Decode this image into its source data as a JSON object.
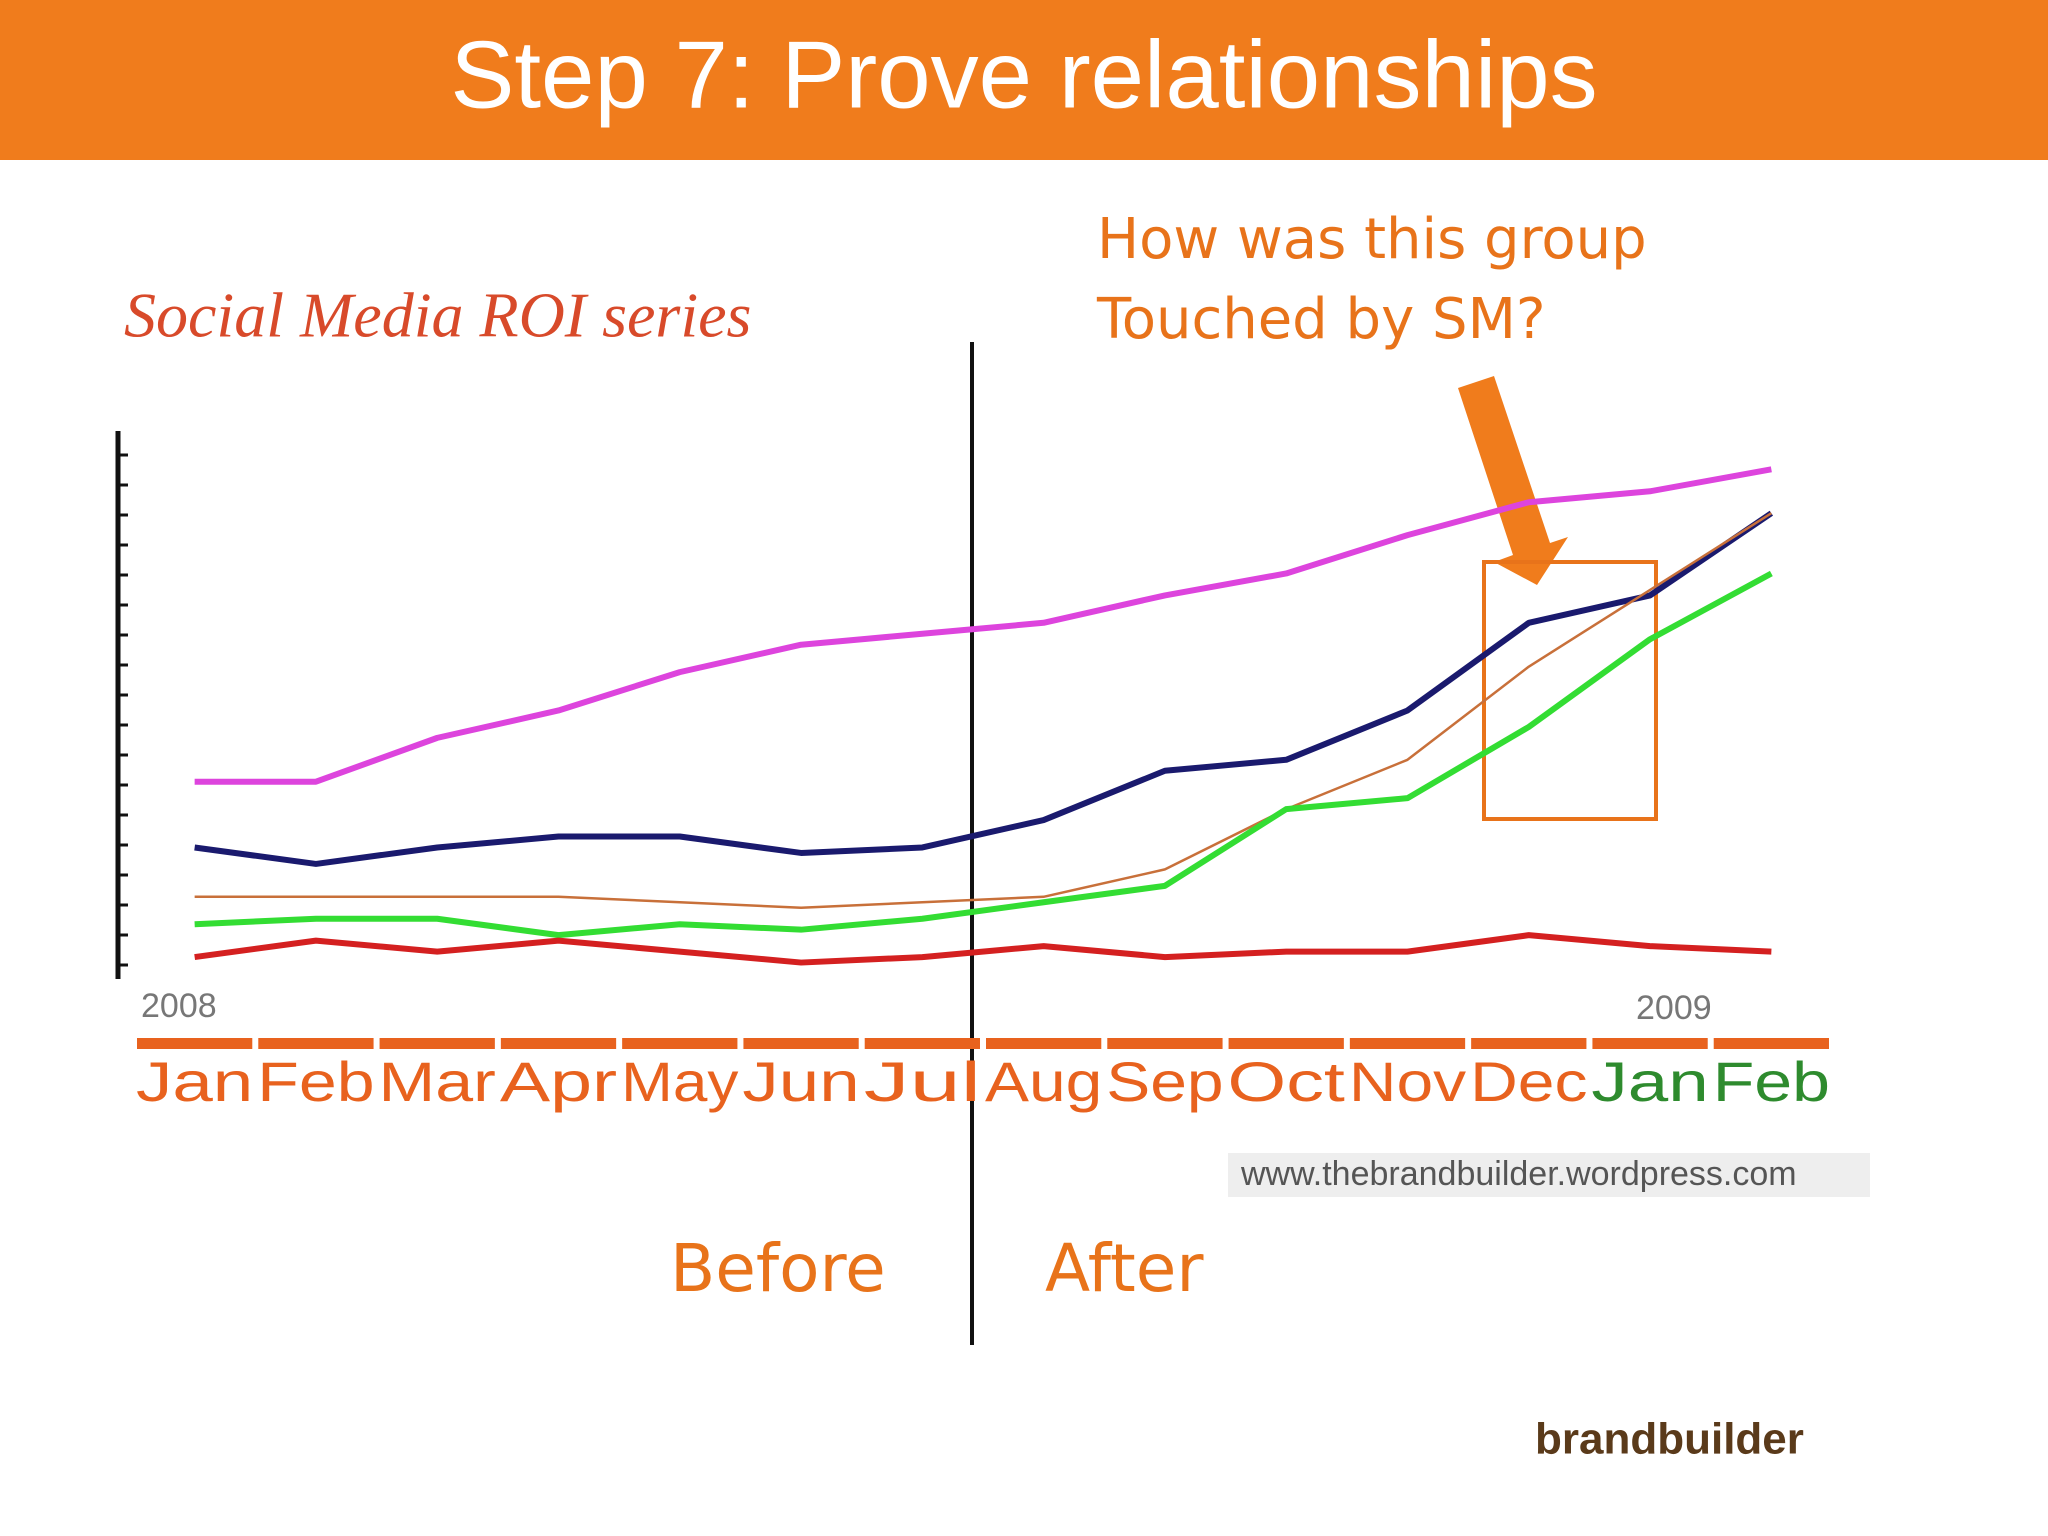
{
  "slide_title": "Step 7: Prove relationships",
  "callout": [
    "How was this group",
    "Touched by SM?"
  ],
  "before_label": "Before",
  "after_label": "After",
  "logo": "brandbuilder",
  "chart_data": {
    "type": "line",
    "title": "Social Media ROI series",
    "categories": [
      "Jan",
      "Feb",
      "Mar",
      "Apr",
      "May",
      "Jun",
      "Jul",
      "Aug",
      "Sep",
      "Oct",
      "Nov",
      "Dec",
      "Jan",
      "Feb"
    ],
    "category_colors": [
      "#e8621e",
      "#e8621e",
      "#e8621e",
      "#e8621e",
      "#e8621e",
      "#e8621e",
      "#e8621e",
      "#e8621e",
      "#e8621e",
      "#e8621e",
      "#e8621e",
      "#e8621e",
      "#2e8b2e",
      "#2e8b2e"
    ],
    "year_labels": [
      "2008",
      "2009"
    ],
    "source": "www.thebrandbuilder.wordpress.com",
    "ylim": [
      0,
      100
    ],
    "series": [
      {
        "color": "#dd44dd",
        "values": [
          36,
          36,
          44,
          49,
          56,
          61,
          63,
          65,
          70,
          74,
          81,
          87,
          89,
          93
        ]
      },
      {
        "color": "#1a1a6e",
        "values": [
          24,
          21,
          24,
          26,
          26,
          23,
          24,
          29,
          38,
          40,
          49,
          65,
          70,
          85
        ]
      },
      {
        "color": "#c8703a",
        "values": [
          15,
          15,
          15,
          15,
          14,
          13,
          14,
          15,
          20,
          31,
          40,
          57,
          71,
          85
        ]
      },
      {
        "color": "#33dd33",
        "values": [
          10,
          11,
          11,
          8,
          10,
          9,
          11,
          14,
          17,
          31,
          33,
          46,
          62,
          74
        ]
      },
      {
        "color": "#d42020",
        "values": [
          4,
          7,
          5,
          7,
          5,
          3,
          4,
          6,
          4,
          5,
          5,
          8,
          6,
          5
        ]
      }
    ]
  }
}
